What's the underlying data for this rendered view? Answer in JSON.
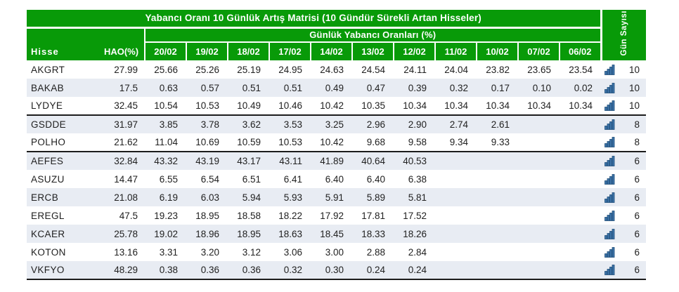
{
  "colors": {
    "header_green": "#089A08",
    "row_stripe": "#E8ECF3",
    "group_separator": "#1c1c1c",
    "body_text": "#212121",
    "header_text": "#ffffff",
    "icon_blue": "#3e74a8",
    "icon_blue_dark": "#1f4e79"
  },
  "icons": {
    "day_count_cell": "ascending-bar-chart-icon"
  },
  "table": {
    "title": "Yabancı Oranı 10 Günlük Artış Matrisi  (10 Gündür Sürekli Artan Hisseler)",
    "subtitle": "Günlük Yabancı Oranları (%)",
    "day_count_header": "Gün Sayısı",
    "col_hisse": "Hisse",
    "col_hao": "HAO(%)",
    "date_headers": [
      "20/02",
      "19/02",
      "18/02",
      "17/02",
      "14/02",
      "13/02",
      "12/02",
      "11/02",
      "10/02",
      "07/02",
      "06/02"
    ],
    "rows": [
      {
        "ticker": "AKGRT",
        "hao": "27.99",
        "values": [
          "25.66",
          "25.26",
          "25.19",
          "24.95",
          "24.63",
          "24.54",
          "24.11",
          "24.04",
          "23.82",
          "23.65",
          "23.54"
        ],
        "count": "10",
        "group_end": false
      },
      {
        "ticker": "BAKAB",
        "hao": "17.5",
        "values": [
          "0.63",
          "0.57",
          "0.51",
          "0.51",
          "0.49",
          "0.47",
          "0.39",
          "0.32",
          "0.17",
          "0.10",
          "0.02"
        ],
        "count": "10",
        "group_end": false
      },
      {
        "ticker": "LYDYE",
        "hao": "32.45",
        "values": [
          "10.54",
          "10.53",
          "10.49",
          "10.46",
          "10.42",
          "10.35",
          "10.34",
          "10.34",
          "10.34",
          "10.34",
          "10.34"
        ],
        "count": "10",
        "group_end": true
      },
      {
        "ticker": "GSDDE",
        "hao": "31.97",
        "values": [
          "3.85",
          "3.78",
          "3.62",
          "3.53",
          "3.25",
          "2.96",
          "2.90",
          "2.74",
          "2.61",
          "",
          ""
        ],
        "count": "8",
        "group_end": false
      },
      {
        "ticker": "POLHO",
        "hao": "21.62",
        "values": [
          "11.04",
          "10.69",
          "10.59",
          "10.53",
          "10.42",
          "9.68",
          "9.58",
          "9.34",
          "9.33",
          "",
          ""
        ],
        "count": "8",
        "group_end": true
      },
      {
        "ticker": "AEFES",
        "hao": "32.84",
        "values": [
          "43.32",
          "43.19",
          "43.17",
          "43.11",
          "41.89",
          "40.64",
          "40.53",
          "",
          "",
          "",
          ""
        ],
        "count": "6",
        "group_end": false
      },
      {
        "ticker": "ASUZU",
        "hao": "14.47",
        "values": [
          "6.55",
          "6.54",
          "6.51",
          "6.41",
          "6.40",
          "6.40",
          "6.38",
          "",
          "",
          "",
          ""
        ],
        "count": "6",
        "group_end": false
      },
      {
        "ticker": "ERCB",
        "hao": "21.08",
        "values": [
          "6.19",
          "6.03",
          "5.94",
          "5.93",
          "5.91",
          "5.89",
          "5.81",
          "",
          "",
          "",
          ""
        ],
        "count": "6",
        "group_end": false
      },
      {
        "ticker": "EREGL",
        "hao": "47.5",
        "values": [
          "19.23",
          "18.95",
          "18.58",
          "18.22",
          "17.92",
          "17.81",
          "17.52",
          "",
          "",
          "",
          ""
        ],
        "count": "6",
        "group_end": false
      },
      {
        "ticker": "KCAER",
        "hao": "25.78",
        "values": [
          "19.02",
          "18.96",
          "18.95",
          "18.63",
          "18.45",
          "18.33",
          "18.26",
          "",
          "",
          "",
          ""
        ],
        "count": "6",
        "group_end": false
      },
      {
        "ticker": "KOTON",
        "hao": "13.16",
        "values": [
          "3.31",
          "3.20",
          "3.12",
          "3.06",
          "3.00",
          "2.88",
          "2.84",
          "",
          "",
          "",
          ""
        ],
        "count": "6",
        "group_end": false
      },
      {
        "ticker": "VKFYO",
        "hao": "48.29",
        "values": [
          "0.38",
          "0.36",
          "0.36",
          "0.32",
          "0.30",
          "0.24",
          "0.24",
          "",
          "",
          "",
          ""
        ],
        "count": "6",
        "group_end": true
      }
    ]
  },
  "chart_data": {
    "type": "table",
    "title": "Yabancı Oranı 10 Günlük Artış Matrisi (10 Gündür Sürekli Artan Hisseler)",
    "column_group_label": "Günlük Yabancı Oranları (%)",
    "columns": [
      "Hisse",
      "HAO(%)",
      "20/02",
      "19/02",
      "18/02",
      "17/02",
      "14/02",
      "13/02",
      "12/02",
      "11/02",
      "10/02",
      "07/02",
      "06/02",
      "Gün Sayısı"
    ],
    "rows": [
      [
        "AKGRT",
        27.99,
        25.66,
        25.26,
        25.19,
        24.95,
        24.63,
        24.54,
        24.11,
        24.04,
        23.82,
        23.65,
        23.54,
        10
      ],
      [
        "BAKAB",
        17.5,
        0.63,
        0.57,
        0.51,
        0.51,
        0.49,
        0.47,
        0.39,
        0.32,
        0.17,
        0.1,
        0.02,
        10
      ],
      [
        "LYDYE",
        32.45,
        10.54,
        10.53,
        10.49,
        10.46,
        10.42,
        10.35,
        10.34,
        10.34,
        10.34,
        10.34,
        10.34,
        10
      ],
      [
        "GSDDE",
        31.97,
        3.85,
        3.78,
        3.62,
        3.53,
        3.25,
        2.96,
        2.9,
        2.74,
        2.61,
        null,
        null,
        8
      ],
      [
        "POLHO",
        21.62,
        11.04,
        10.69,
        10.59,
        10.53,
        10.42,
        9.68,
        9.58,
        9.34,
        9.33,
        null,
        null,
        8
      ],
      [
        "AEFES",
        32.84,
        43.32,
        43.19,
        43.17,
        43.11,
        41.89,
        40.64,
        40.53,
        null,
        null,
        null,
        null,
        6
      ],
      [
        "ASUZU",
        14.47,
        6.55,
        6.54,
        6.51,
        6.41,
        6.4,
        6.4,
        6.38,
        null,
        null,
        null,
        null,
        6
      ],
      [
        "ERCB",
        21.08,
        6.19,
        6.03,
        5.94,
        5.93,
        5.91,
        5.89,
        5.81,
        null,
        null,
        null,
        null,
        6
      ],
      [
        "EREGL",
        47.5,
        19.23,
        18.95,
        18.58,
        18.22,
        17.92,
        17.81,
        17.52,
        null,
        null,
        null,
        null,
        6
      ],
      [
        "KCAER",
        25.78,
        19.02,
        18.96,
        18.95,
        18.63,
        18.45,
        18.33,
        18.26,
        null,
        null,
        null,
        null,
        6
      ],
      [
        "KOTON",
        13.16,
        3.31,
        3.2,
        3.12,
        3.06,
        3.0,
        2.88,
        2.84,
        null,
        null,
        null,
        null,
        6
      ],
      [
        "VKFYO",
        48.29,
        0.38,
        0.36,
        0.36,
        0.32,
        0.3,
        0.24,
        0.24,
        null,
        null,
        null,
        null,
        6
      ]
    ]
  }
}
